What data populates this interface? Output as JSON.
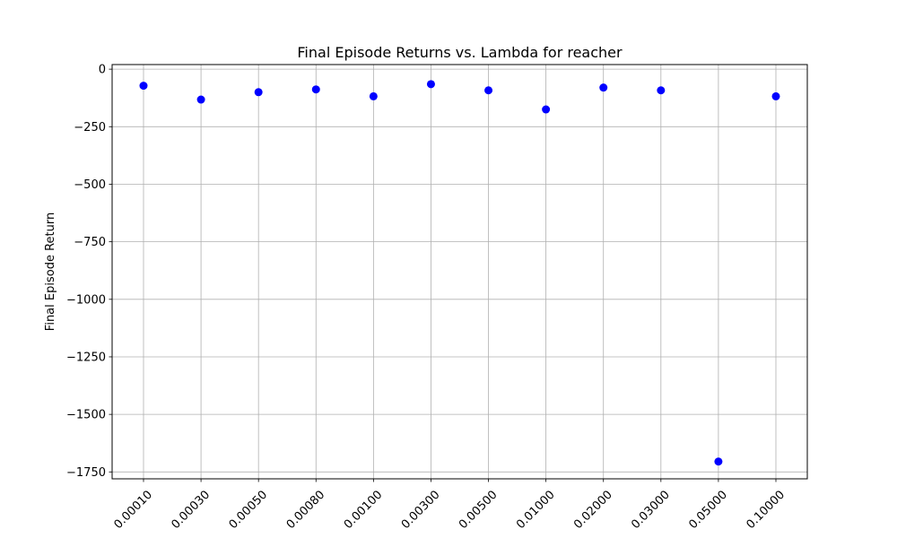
{
  "chart_data": {
    "type": "scatter",
    "title": "Final Episode Returns vs. Lambda for reacher",
    "xlabel": "",
    "ylabel": "Final Episode Return",
    "categories": [
      "0.00010",
      "0.00030",
      "0.00050",
      "0.00080",
      "0.00100",
      "0.00300",
      "0.00500",
      "0.01000",
      "0.02000",
      "0.03000",
      "0.05000",
      "0.10000"
    ],
    "series": [
      {
        "values": [
          -72,
          -132,
          -100,
          -88,
          -118,
          -65,
          -92,
          -175,
          -80,
          -92,
          -1705,
          -118
        ],
        "color": "#0000ff"
      }
    ],
    "ylim": [
      -1780,
      20
    ],
    "yticks": [
      0,
      -250,
      -500,
      -750,
      -1000,
      -1250,
      -1500,
      -1750
    ],
    "ytick_labels": [
      "0",
      "−250",
      "−500",
      "−750",
      "−1000",
      "−1250",
      "−1500",
      "−1750"
    ],
    "grid": true,
    "xtick_rotation": 45
  }
}
